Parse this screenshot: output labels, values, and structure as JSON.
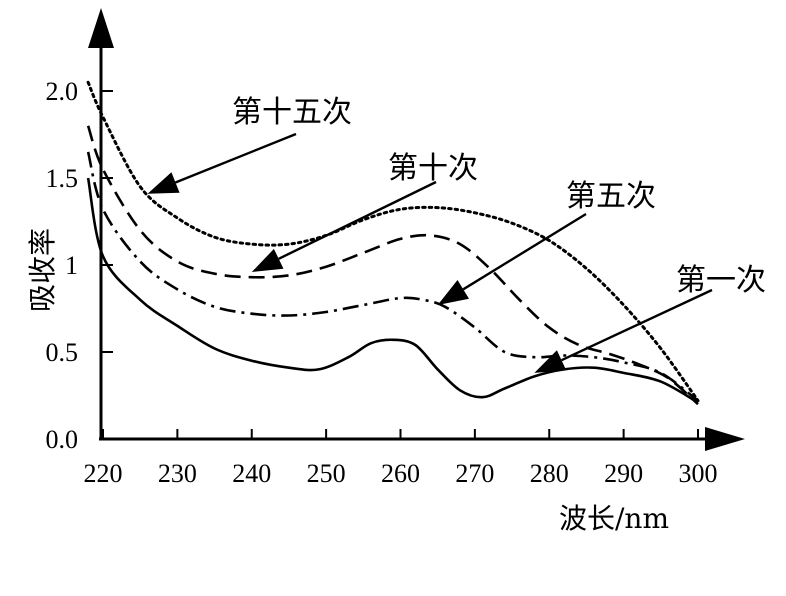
{
  "chart_data": {
    "type": "line",
    "title": "",
    "xlabel": "波长/nm",
    "ylabel": "吸收率",
    "xlim": [
      218,
      301
    ],
    "ylim": [
      0,
      2.1
    ],
    "x_ticks": [
      "220",
      "230",
      "240",
      "250",
      "260",
      "270",
      "280",
      "290",
      "300"
    ],
    "y_ticks": [
      "0.0",
      "0.5",
      "1",
      "1.5",
      "2.0"
    ],
    "grid": false,
    "legend": "none",
    "series": [
      {
        "name": "第一次",
        "style": "solid",
        "x": [
          218,
          220,
          225,
          230,
          235,
          240,
          245,
          249,
          253,
          256,
          259,
          262,
          265,
          268,
          271,
          274,
          278,
          282,
          286,
          290,
          295,
          300
        ],
        "y": [
          1.5,
          1.05,
          0.8,
          0.65,
          0.52,
          0.45,
          0.41,
          0.4,
          0.47,
          0.55,
          0.57,
          0.54,
          0.4,
          0.28,
          0.24,
          0.29,
          0.36,
          0.4,
          0.41,
          0.38,
          0.33,
          0.21
        ]
      },
      {
        "name": "第五次",
        "style": "dashdot",
        "x": [
          218,
          220,
          225,
          230,
          235,
          240,
          245,
          250,
          255,
          260,
          263,
          266,
          270,
          274,
          278,
          282,
          286,
          290,
          295,
          300
        ],
        "y": [
          1.65,
          1.32,
          1.02,
          0.86,
          0.76,
          0.72,
          0.71,
          0.73,
          0.77,
          0.81,
          0.8,
          0.76,
          0.64,
          0.5,
          0.47,
          0.48,
          0.47,
          0.44,
          0.38,
          0.22
        ]
      },
      {
        "name": "第十次",
        "style": "dashed",
        "x": [
          218,
          220,
          225,
          230,
          235,
          240,
          245,
          250,
          255,
          260,
          264,
          268,
          272,
          276,
          280,
          284,
          288,
          292,
          296,
          300
        ],
        "y": [
          1.8,
          1.55,
          1.2,
          1.02,
          0.95,
          0.93,
          0.94,
          0.99,
          1.07,
          1.15,
          1.17,
          1.12,
          0.98,
          0.8,
          0.64,
          0.54,
          0.49,
          0.43,
          0.35,
          0.2
        ]
      },
      {
        "name": "第十五次",
        "style": "dotted",
        "x": [
          218,
          220,
          225,
          230,
          235,
          240,
          245,
          250,
          255,
          260,
          265,
          270,
          275,
          280,
          285,
          290,
          295,
          300
        ],
        "y": [
          2.05,
          1.85,
          1.45,
          1.27,
          1.16,
          1.12,
          1.12,
          1.17,
          1.26,
          1.32,
          1.33,
          1.3,
          1.24,
          1.14,
          0.98,
          0.77,
          0.52,
          0.22
        ]
      }
    ],
    "annotations": [
      {
        "text": "第十五次",
        "target_x": 226,
        "target_y": 1.41,
        "series": "第十五次"
      },
      {
        "text": "第十次",
        "target_x": 240,
        "target_y": 0.96,
        "series": "第十次"
      },
      {
        "text": "第五次",
        "target_x": 265,
        "target_y": 0.77,
        "series": "第五次"
      },
      {
        "text": "第一次",
        "target_x": 278,
        "target_y": 0.38,
        "series": "第一次"
      }
    ]
  }
}
